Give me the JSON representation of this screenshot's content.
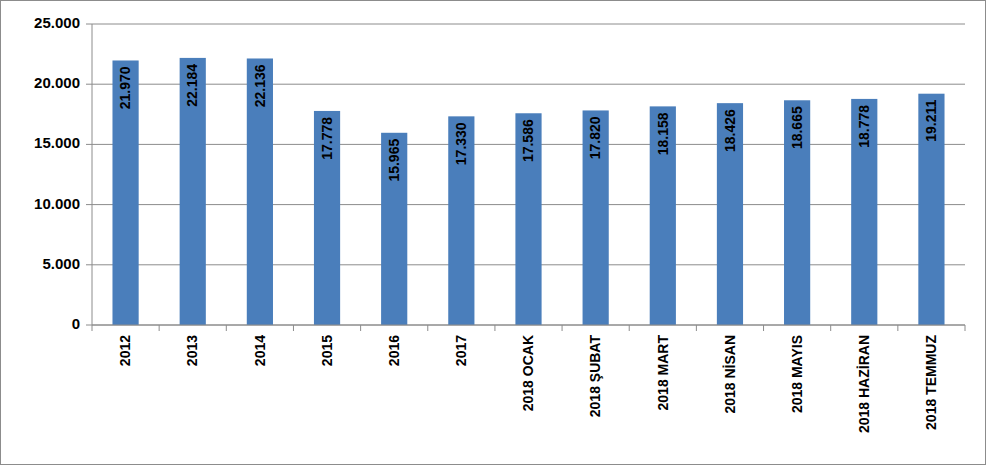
{
  "chart_data": {
    "type": "bar",
    "categories": [
      "2012",
      "2013",
      "2014",
      "2015",
      "2016",
      "2017",
      "2018 OCAK",
      "2018 ŞUBAT",
      "2018 MART",
      "2018 NİSAN",
      "2018 MAYIS",
      "2018 HAZİRAN",
      "2018 TEMMUZ"
    ],
    "values": [
      21970,
      22184,
      22136,
      17778,
      15965,
      17330,
      17586,
      17820,
      18158,
      18426,
      18665,
      18778,
      19211
    ],
    "value_labels": [
      "21.970",
      "22.184",
      "22.136",
      "17.778",
      "15.965",
      "17.330",
      "17.586",
      "17.820",
      "18.158",
      "18.426",
      "18.665",
      "18.778",
      "19.211"
    ],
    "color": "#4a7ebb",
    "ylim": [
      0,
      25000
    ],
    "yticks": [
      0,
      {
        "value": 5000,
        "label": "5.000"
      },
      {
        "value": 10000,
        "label": "10.000"
      },
      {
        "value": 15000,
        "label": "15.000"
      },
      {
        "value": 20000,
        "label": "20.000"
      },
      {
        "value": 25000,
        "label": "25.000"
      }
    ],
    "grid": true,
    "data_labels": true
  }
}
